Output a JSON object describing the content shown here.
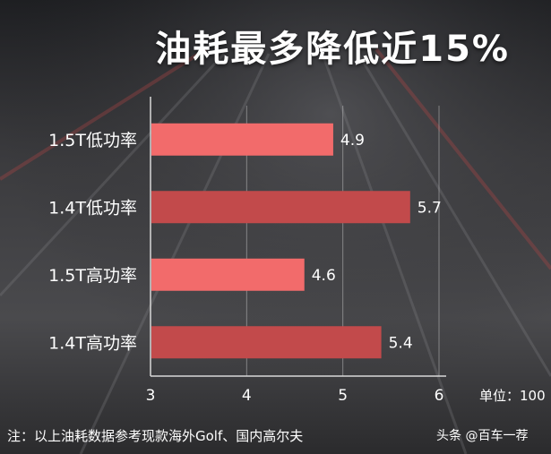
{
  "title": "油耗最多降低近15%",
  "unit_label": "单位：100",
  "note": "注：以上油耗数据参考现款海外Golf、国内高尔夫",
  "source": "头条 @百车一荐",
  "colors": {
    "bar_light": "#f26b6b",
    "bar_dark": "#c24a4b",
    "axis": "#d8d8d8",
    "text": "#ffffff"
  },
  "chart_data": {
    "type": "bar",
    "orientation": "horizontal",
    "title": "油耗最多降低近15%",
    "categories": [
      "1.5T低功率",
      "1.4T低功率",
      "1.5T高功率",
      "1.4T高功率"
    ],
    "values": [
      4.9,
      5.7,
      4.6,
      5.4
    ],
    "value_labels": [
      "4.9",
      "5.7",
      "4.6",
      "5.4"
    ],
    "xlim": [
      3,
      6
    ],
    "xticks": [
      "3",
      "4",
      "5",
      "6"
    ],
    "grid": true,
    "legend": "none"
  }
}
